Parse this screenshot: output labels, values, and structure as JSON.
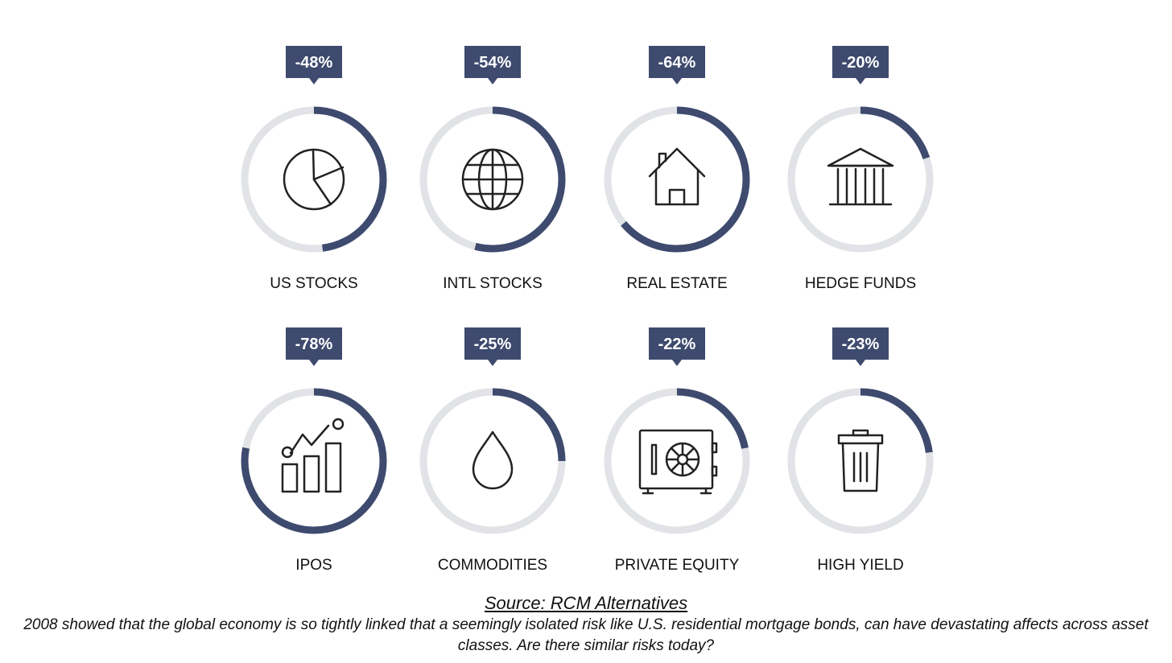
{
  "chart_data": {
    "type": "donut-grid",
    "colors": {
      "fill": "#3e4a6e",
      "track": "#e1e3e6",
      "label_bg": "#3e4a6e",
      "label_text": "#ffffff",
      "icon": "#222222"
    },
    "items": [
      {
        "name": "US STOCKS",
        "label": "-48%",
        "value": -48,
        "icon": "pie-chart-icon"
      },
      {
        "name": "INTL STOCKS",
        "label": "-54%",
        "value": -54,
        "icon": "globe-icon"
      },
      {
        "name": "REAL ESTATE",
        "label": "-64%",
        "value": -64,
        "icon": "house-icon"
      },
      {
        "name": "HEDGE FUNDS",
        "label": "-20%",
        "value": -20,
        "icon": "bank-icon"
      },
      {
        "name": "IPOS",
        "label": "-78%",
        "value": -78,
        "icon": "growth-chart-icon"
      },
      {
        "name": "COMMODITIES",
        "label": "-25%",
        "value": -25,
        "icon": "drop-icon"
      },
      {
        "name": "PRIVATE EQUITY",
        "label": "-22%",
        "value": -22,
        "icon": "safe-icon"
      },
      {
        "name": "HIGH YIELD",
        "label": "-23%",
        "value": -23,
        "icon": "trash-can-icon"
      }
    ]
  },
  "footer": {
    "source": "Source: RCM Alternatives",
    "caption": "2008 showed that the global economy is so tightly linked that a seemingly isolated risk like U.S. residential mortgage bonds, can have devastating affects across asset classes. Are there similar risks today?"
  }
}
